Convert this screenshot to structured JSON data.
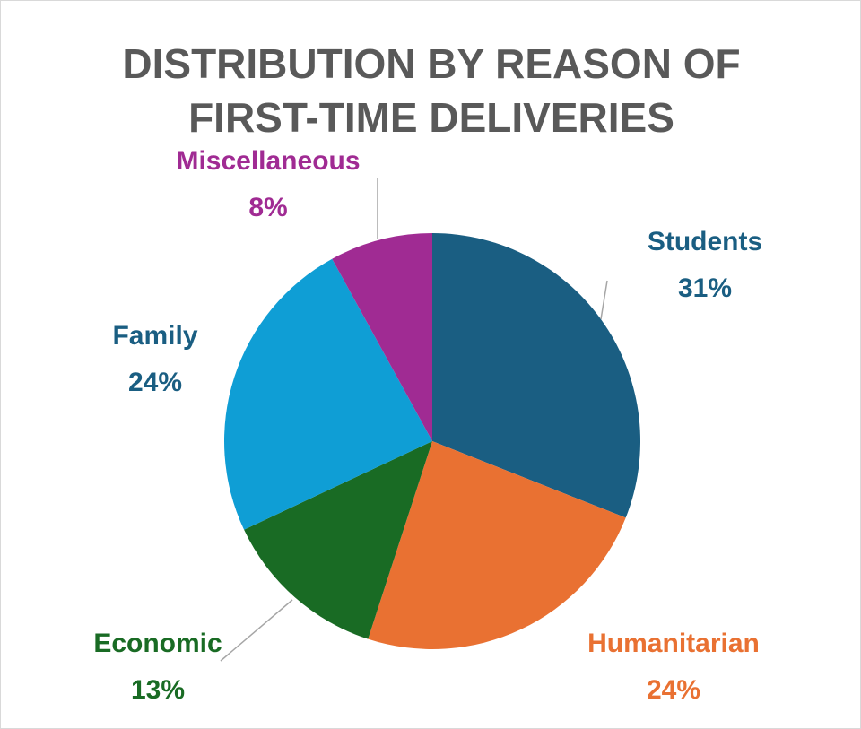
{
  "chart_data": {
    "type": "pie",
    "title": "DISTRIBUTION BY REASON OF FIRST-TIME DELIVERIES",
    "categories": [
      "Students",
      "Humanitarian",
      "Economic",
      "Family",
      "Miscellaneous"
    ],
    "values": [
      31,
      24,
      13,
      24,
      8
    ],
    "value_labels": [
      "31%",
      "24%",
      "13%",
      "24%",
      "8%"
    ],
    "colors": [
      "#1a5e82",
      "#e97132",
      "#196b24",
      "#0f9ed5",
      "#a02b93"
    ],
    "label_colors": [
      "#1a5e82",
      "#e97132",
      "#196b24",
      "#1a5e82",
      "#a02b93"
    ]
  }
}
